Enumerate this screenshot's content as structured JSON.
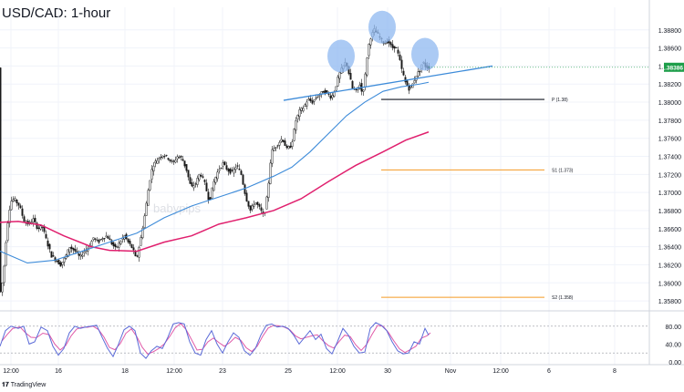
{
  "title": "USD/CAD: 1-hour",
  "brand": "TradingView",
  "watermark": "babypips",
  "colors": {
    "candle": "#1a1a1a",
    "ma_fast": "#3d8bd9",
    "ma_slow": "#e0206e",
    "trendline": "#3d8bd9",
    "pivot": "#131722",
    "support": "#f59a23",
    "price_tag": "#1e9e4a",
    "stoch_k": "#5b6bd8",
    "stoch_d": "#e05aa8",
    "bubble": "#8fb8f0"
  },
  "chart_data": [
    {
      "type": "line",
      "subtype": "candlestick",
      "symbol": "USD/CAD",
      "timeframe": "1-hour",
      "x_ticks": [
        "12:00",
        "16",
        "18",
        "12:00",
        "23",
        "25",
        "12:00",
        "30",
        "Nov",
        "12:00",
        "6",
        "8"
      ],
      "y_ticks": [
        "1.38800",
        "1.38600",
        "1.38400",
        "1.38200",
        "1.38000",
        "1.37800",
        "1.37600",
        "1.37400",
        "1.37200",
        "1.37000",
        "1.36800",
        "1.36600",
        "1.36400",
        "1.36200",
        "1.36000",
        "1.35800"
      ],
      "ylim": [
        1.3572,
        1.3905
      ],
      "current_price_label": "1.38386",
      "current_price": 1.38386,
      "grid": true,
      "price_path": [
        [
          0,
          1.3585
        ],
        [
          4,
          1.3605
        ],
        [
          8,
          1.366
        ],
        [
          12,
          1.369
        ],
        [
          16,
          1.3693
        ],
        [
          22,
          1.3685
        ],
        [
          27,
          1.3668
        ],
        [
          32,
          1.3665
        ],
        [
          37,
          1.367
        ],
        [
          42,
          1.366
        ],
        [
          47,
          1.3662
        ],
        [
          52,
          1.3645
        ],
        [
          57,
          1.363
        ],
        [
          62,
          1.3625
        ],
        [
          67,
          1.362
        ],
        [
          72,
          1.3628
        ],
        [
          77,
          1.364
        ],
        [
          83,
          1.3635
        ],
        [
          88,
          1.3628
        ],
        [
          93,
          1.3635
        ],
        [
          98,
          1.364
        ],
        [
          103,
          1.365
        ],
        [
          108,
          1.3645
        ],
        [
          113,
          1.365
        ],
        [
          118,
          1.3652
        ],
        [
          122,
          1.3645
        ],
        [
          127,
          1.3638
        ],
        [
          132,
          1.3645
        ],
        [
          137,
          1.3652
        ],
        [
          141,
          1.3645
        ],
        [
          146,
          1.3638
        ],
        [
          150,
          1.3625
        ],
        [
          155,
          1.365
        ],
        [
          160,
          1.368
        ],
        [
          164,
          1.371
        ],
        [
          168,
          1.373
        ],
        [
          172,
          1.3735
        ],
        [
          176,
          1.374
        ],
        [
          180,
          1.3742
        ],
        [
          185,
          1.3738
        ],
        [
          190,
          1.3732
        ],
        [
          195,
          1.374
        ],
        [
          200,
          1.3738
        ],
        [
          205,
          1.3725
        ],
        [
          210,
          1.3705
        ],
        [
          215,
          1.371
        ],
        [
          220,
          1.3722
        ],
        [
          225,
          1.371
        ],
        [
          230,
          1.369
        ],
        [
          235,
          1.3712
        ],
        [
          240,
          1.3725
        ],
        [
          245,
          1.3732
        ],
        [
          250,
          1.3725
        ],
        [
          255,
          1.3722
        ],
        [
          260,
          1.373
        ],
        [
          265,
          1.372
        ],
        [
          270,
          1.3695
        ],
        [
          275,
          1.368
        ],
        [
          280,
          1.369
        ],
        [
          285,
          1.3683
        ],
        [
          290,
          1.3673
        ],
        [
          294,
          1.37
        ],
        [
          298,
          1.3745
        ],
        [
          302,
          1.375
        ],
        [
          306,
          1.3755
        ],
        [
          310,
          1.376
        ],
        [
          315,
          1.3748
        ],
        [
          320,
          1.3752
        ],
        [
          325,
          1.378
        ],
        [
          329,
          1.379
        ],
        [
          334,
          1.3795
        ],
        [
          338,
          1.3803
        ],
        [
          343,
          1.38
        ],
        [
          347,
          1.3805
        ],
        [
          351,
          1.3808
        ],
        [
          355,
          1.3812
        ],
        [
          359,
          1.381
        ],
        [
          364,
          1.3805
        ],
        [
          368,
          1.3815
        ],
        [
          372,
          1.383
        ],
        [
          376,
          1.3838
        ],
        [
          380,
          1.3845
        ],
        [
          383,
          1.3832
        ],
        [
          387,
          1.3815
        ],
        [
          391,
          1.3812
        ],
        [
          395,
          1.382
        ],
        [
          398,
          1.3808
        ],
        [
          401,
          1.383
        ],
        [
          404,
          1.386
        ],
        [
          407,
          1.3872
        ],
        [
          411,
          1.388
        ],
        [
          414,
          1.3876
        ],
        [
          418,
          1.387
        ],
        [
          422,
          1.3865
        ],
        [
          426,
          1.3868
        ],
        [
          430,
          1.386
        ],
        [
          434,
          1.3862
        ],
        [
          438,
          1.385
        ],
        [
          441,
          1.3836
        ],
        [
          445,
          1.3822
        ],
        [
          449,
          1.3815
        ],
        [
          453,
          1.382
        ],
        [
          457,
          1.383
        ],
        [
          461,
          1.3835
        ],
        [
          464,
          1.3845
        ],
        [
          467,
          1.384
        ],
        [
          470,
          1.3838
        ]
      ],
      "ma_fast": [
        [
          0,
          1.3635
        ],
        [
          30,
          1.3622
        ],
        [
          60,
          1.3625
        ],
        [
          90,
          1.3635
        ],
        [
          120,
          1.3645
        ],
        [
          150,
          1.3655
        ],
        [
          180,
          1.3672
        ],
        [
          210,
          1.3685
        ],
        [
          240,
          1.3695
        ],
        [
          270,
          1.3705
        ],
        [
          300,
          1.3718
        ],
        [
          320,
          1.3728
        ],
        [
          340,
          1.3745
        ],
        [
          360,
          1.3765
        ],
        [
          380,
          1.3785
        ],
        [
          400,
          1.38
        ],
        [
          420,
          1.3812
        ],
        [
          440,
          1.3817
        ],
        [
          460,
          1.382
        ],
        [
          470,
          1.3822
        ]
      ],
      "ma_slow": [
        [
          0,
          1.3667
        ],
        [
          20,
          1.3668
        ],
        [
          45,
          1.3664
        ],
        [
          70,
          1.3652
        ],
        [
          100,
          1.364
        ],
        [
          120,
          1.3636
        ],
        [
          150,
          1.3635
        ],
        [
          180,
          1.3645
        ],
        [
          210,
          1.3652
        ],
        [
          240,
          1.3665
        ],
        [
          270,
          1.3672
        ],
        [
          300,
          1.368
        ],
        [
          330,
          1.3693
        ],
        [
          360,
          1.3712
        ],
        [
          390,
          1.373
        ],
        [
          420,
          1.3745
        ],
        [
          445,
          1.3758
        ],
        [
          470,
          1.3767
        ]
      ],
      "trendline": [
        [
          311,
          1.3802
        ],
        [
          540,
          1.384
        ]
      ],
      "head_and_shoulders_markers": [
        {
          "x": 374,
          "price": 1.3848
        },
        {
          "x": 419,
          "price": 1.388
        },
        {
          "x": 466,
          "price": 1.385
        }
      ],
      "levels": [
        {
          "label": "P (1.38)",
          "value": 1.3803,
          "x_start": 418,
          "x_end": 597,
          "color": "#131722"
        },
        {
          "label": "S1 (1.373)",
          "value": 1.3725,
          "x_start": 418,
          "x_end": 597,
          "color": "#f59a23"
        },
        {
          "label": "S2 (1.358)",
          "value": 1.3584,
          "x_start": 418,
          "x_end": 597,
          "color": "#f59a23"
        }
      ]
    },
    {
      "type": "line",
      "subtype": "stochastic-oscillator",
      "y_ticks": [
        "80.00",
        "40.00",
        "0.00"
      ],
      "ylim": [
        0,
        100
      ],
      "levels": [
        80,
        20
      ],
      "k": [
        [
          0,
          35
        ],
        [
          6,
          70
        ],
        [
          12,
          80
        ],
        [
          20,
          75
        ],
        [
          26,
          80
        ],
        [
          32,
          40
        ],
        [
          38,
          45
        ],
        [
          45,
          78
        ],
        [
          52,
          70
        ],
        [
          58,
          35
        ],
        [
          64,
          15
        ],
        [
          70,
          30
        ],
        [
          76,
          65
        ],
        [
          82,
          80
        ],
        [
          88,
          75
        ],
        [
          94,
          78
        ],
        [
          100,
          80
        ],
        [
          106,
          82
        ],
        [
          112,
          55
        ],
        [
          118,
          30
        ],
        [
          124,
          12
        ],
        [
          130,
          40
        ],
        [
          136,
          72
        ],
        [
          142,
          80
        ],
        [
          148,
          70
        ],
        [
          154,
          20
        ],
        [
          160,
          8
        ],
        [
          166,
          25
        ],
        [
          172,
          35
        ],
        [
          178,
          30
        ],
        [
          184,
          55
        ],
        [
          190,
          85
        ],
        [
          196,
          88
        ],
        [
          202,
          85
        ],
        [
          208,
          45
        ],
        [
          214,
          20
        ],
        [
          220,
          15
        ],
        [
          226,
          50
        ],
        [
          232,
          70
        ],
        [
          238,
          40
        ],
        [
          244,
          20
        ],
        [
          250,
          45
        ],
        [
          256,
          65
        ],
        [
          262,
          55
        ],
        [
          268,
          25
        ],
        [
          274,
          15
        ],
        [
          280,
          30
        ],
        [
          286,
          60
        ],
        [
          292,
          82
        ],
        [
          298,
          85
        ],
        [
          304,
          78
        ],
        [
          310,
          80
        ],
        [
          316,
          75
        ],
        [
          322,
          60
        ],
        [
          328,
          40
        ],
        [
          334,
          55
        ],
        [
          340,
          70
        ],
        [
          346,
          50
        ],
        [
          352,
          62
        ],
        [
          358,
          30
        ],
        [
          364,
          18
        ],
        [
          370,
          45
        ],
        [
          376,
          75
        ],
        [
          382,
          60
        ],
        [
          388,
          35
        ],
        [
          394,
          20
        ],
        [
          400,
          22
        ],
        [
          406,
          75
        ],
        [
          412,
          88
        ],
        [
          418,
          82
        ],
        [
          424,
          70
        ],
        [
          430,
          45
        ],
        [
          436,
          25
        ],
        [
          442,
          18
        ],
        [
          448,
          20
        ],
        [
          454,
          45
        ],
        [
          460,
          40
        ],
        [
          466,
          75
        ],
        [
          470,
          60
        ]
      ]
    }
  ]
}
